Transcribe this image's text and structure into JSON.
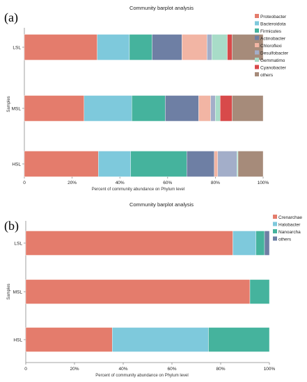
{
  "chart_data": [
    {
      "type": "bar",
      "panel_label": "(a)",
      "title": "Community barplot analysis",
      "xlabel": "Percent of community abundance on Phylum level",
      "ylabel": "Samples",
      "orientation": "horizontal",
      "stacked": true,
      "xlim": [
        0,
        100
      ],
      "x_ticks": [
        "0",
        "20%",
        "40%",
        "60%",
        "80%",
        "100%"
      ],
      "legend_position": "right",
      "categories": [
        "LSL",
        "MSL",
        "HSL"
      ],
      "series": [
        {
          "name": "Proteobacteria",
          "color": "#e47c6c",
          "values": [
            30.5,
            25.0,
            31.0
          ]
        },
        {
          "name": "Bacteroidota",
          "color": "#7ec9dc",
          "values": [
            13.5,
            20.0,
            13.5
          ]
        },
        {
          "name": "Firmicutes",
          "color": "#45b39d",
          "values": [
            9.5,
            14.0,
            23.5
          ]
        },
        {
          "name": "Actinobacteria",
          "color": "#6e7fa4",
          "values": [
            12.5,
            14.0,
            11.5
          ]
        },
        {
          "name": "Chloroflexi",
          "color": "#f2b5a4",
          "values": [
            10.5,
            5.0,
            1.5
          ]
        },
        {
          "name": "Desulfobacterota",
          "color": "#a3aec9",
          "values": [
            2.0,
            2.0,
            8.0
          ]
        },
        {
          "name": "Gemmatimonadota",
          "color": "#a8dcc8",
          "values": [
            6.5,
            2.0,
            0.5
          ]
        },
        {
          "name": "Cyanobacteria",
          "color": "#d84a4a",
          "values": [
            2.0,
            5.0,
            0.0
          ]
        },
        {
          "name": "others",
          "color": "#a68b7a",
          "values": [
            13.0,
            13.0,
            10.5
          ]
        }
      ],
      "legend_labels": [
        "Proteobacter",
        "Bacteroidota",
        "Firmicutes",
        "Actinobacter",
        "Chloroflexi",
        "Desulfobacter",
        "Gemmatimo",
        "Cyanobacter",
        "others"
      ]
    },
    {
      "type": "bar",
      "panel_label": "(b)",
      "title": "Community barplot analysis",
      "xlabel": "Percent of community abundance on Phylum level",
      "ylabel": "Samples",
      "orientation": "horizontal",
      "stacked": true,
      "xlim": [
        0,
        100
      ],
      "x_ticks": [
        "0",
        "20%",
        "40%",
        "60%",
        "80%",
        "100%"
      ],
      "legend_position": "right",
      "categories": [
        "LSL",
        "MSL",
        "HSL"
      ],
      "series": [
        {
          "name": "Crenarchaeota",
          "color": "#e47c6c",
          "values": [
            85.0,
            92.0,
            35.5
          ]
        },
        {
          "name": "Halobacterota",
          "color": "#7ec9dc",
          "values": [
            9.5,
            0.0,
            39.5
          ]
        },
        {
          "name": "Nanoarchaeota",
          "color": "#45b39d",
          "values": [
            3.5,
            8.0,
            25.0
          ]
        },
        {
          "name": "others",
          "color": "#6e7fa4",
          "values": [
            2.0,
            0.0,
            0.0
          ]
        }
      ],
      "legend_labels": [
        "Crenarchae",
        "Halobacter",
        "Nanoarcha",
        "others"
      ]
    }
  ]
}
